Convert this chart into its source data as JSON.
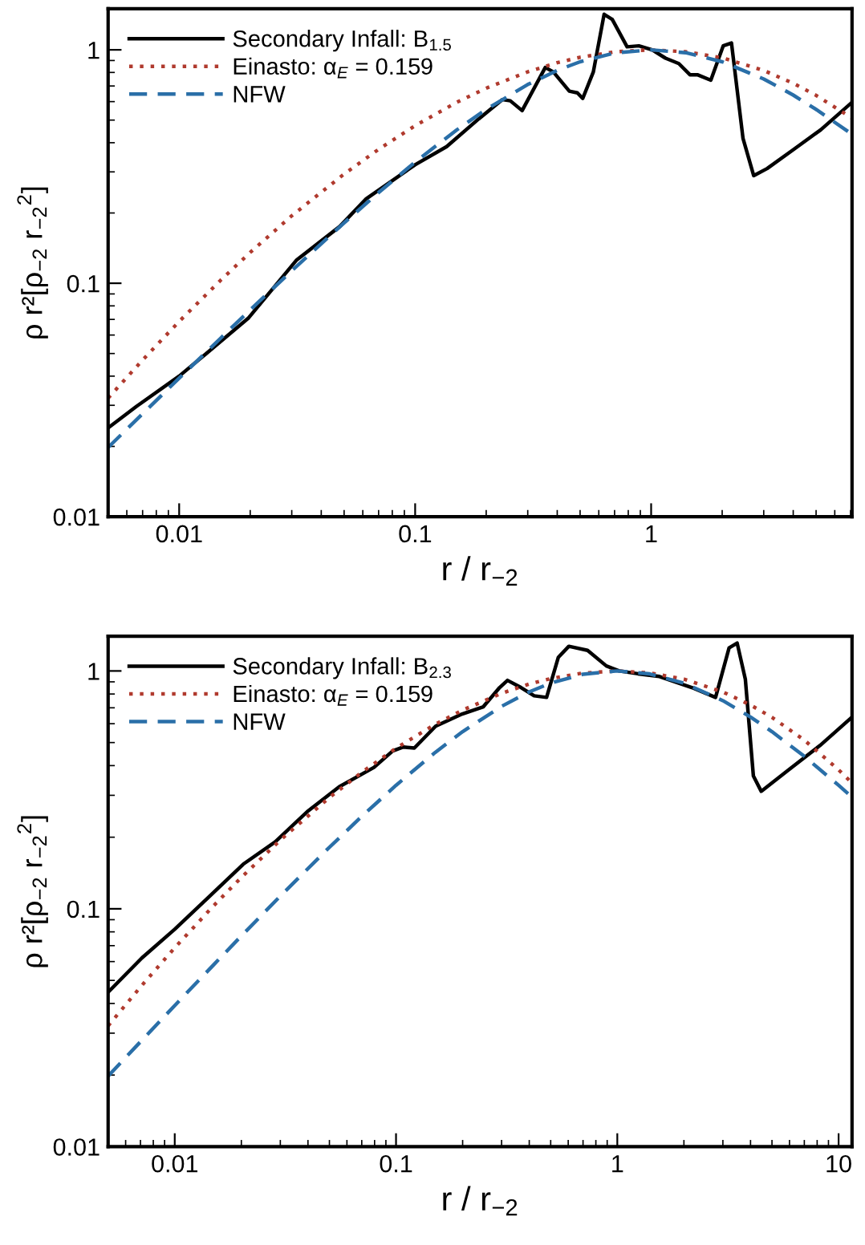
{
  "chart_data": [
    {
      "type": "line",
      "log": "xy",
      "xlabel": "r / r$_{−2}$",
      "ylabel": "ρ r²[ρ$_{−2}$ r$_{−2}$$^{2}$]",
      "xlim": [
        0.005,
        7.1
      ],
      "ylim": [
        0.01,
        1.5
      ],
      "xticks": [
        0.01,
        0.1,
        1
      ],
      "yticks": [
        0.01,
        0.1,
        1
      ],
      "legend": "top left",
      "grid": false,
      "series": [
        {
          "name": "Secondary Infall: B$_{1.5}$",
          "color": "#000000",
          "line_style": "solid",
          "x": [
            0.005,
            0.0066,
            0.01,
            0.013,
            0.0197,
            0.0315,
            0.0479,
            0.062,
            0.1,
            0.136,
            0.186,
            0.234,
            0.253,
            0.284,
            0.356,
            0.385,
            0.45,
            0.487,
            0.513,
            0.569,
            0.632,
            0.684,
            0.791,
            0.887,
            1.01,
            1.15,
            1.31,
            1.46,
            1.57,
            1.79,
            2.02,
            2.19,
            2.45,
            2.72,
            3.1,
            4.03,
            5.23,
            7.1
          ],
          "values": [
            0.024,
            0.0297,
            0.04,
            0.0499,
            0.0711,
            0.126,
            0.175,
            0.23,
            0.322,
            0.385,
            0.506,
            0.612,
            0.605,
            0.549,
            0.84,
            0.804,
            0.665,
            0.654,
            0.619,
            0.804,
            1.42,
            1.35,
            1.03,
            1.04,
            1.0,
            0.921,
            0.873,
            0.782,
            0.782,
            0.741,
            1.04,
            1.07,
            0.418,
            0.289,
            0.31,
            0.375,
            0.454,
            0.596
          ]
        },
        {
          "name": "Einasto: α$_{E}$ = 0.159",
          "color": "#b03a2e",
          "line_style": "dotted",
          "x": [
            0.005,
            0.007,
            0.01,
            0.015,
            0.02,
            0.03,
            0.05,
            0.07,
            0.1,
            0.15,
            0.2,
            0.3,
            0.4,
            0.5,
            0.7,
            1,
            1.4,
            2,
            3,
            4,
            5,
            7.1
          ],
          "values": [
            0.0322,
            0.0469,
            0.0686,
            0.1031,
            0.1355,
            0.1946,
            0.2936,
            0.3748,
            0.4733,
            0.5957,
            0.6846,
            0.805,
            0.881,
            0.929,
            0.98,
            1.0,
            0.981,
            0.924,
            0.816,
            0.719,
            0.638,
            0.51
          ]
        },
        {
          "name": "NFW",
          "color": "#2a6fa8",
          "line_style": "dashed",
          "x": [
            0.005,
            0.007,
            0.01,
            0.015,
            0.02,
            0.03,
            0.05,
            0.07,
            0.1,
            0.15,
            0.2,
            0.3,
            0.4,
            0.5,
            0.7,
            1,
            1.4,
            2,
            3,
            4,
            5,
            7.1
          ],
          "values": [
            0.0198,
            0.0276,
            0.0392,
            0.0582,
            0.0769,
            0.1131,
            0.1814,
            0.2446,
            0.3306,
            0.4537,
            0.5556,
            0.7101,
            0.8163,
            0.8889,
            0.9689,
            1.0,
            0.9722,
            0.8889,
            0.75,
            0.64,
            0.5556,
            0.435
          ]
        }
      ]
    },
    {
      "type": "line",
      "log": "xy",
      "xlabel": "r / r$_{−2}$",
      "ylabel": "ρ r²[ρ$_{−2}$ r$_{−2}$$^{2}$]",
      "xlim": [
        0.005,
        11.5
      ],
      "ylim": [
        0.01,
        1.4
      ],
      "xticks": [
        0.01,
        0.1,
        1,
        10
      ],
      "yticks": [
        0.01,
        0.1,
        1
      ],
      "legend": "top left",
      "grid": false,
      "series": [
        {
          "name": "Secondary Infall: B$_{2.3}$",
          "color": "#000000",
          "line_style": "solid",
          "x": [
            0.005,
            0.0071,
            0.01,
            0.0138,
            0.0204,
            0.0284,
            0.0397,
            0.0554,
            0.0795,
            0.0966,
            0.108,
            0.121,
            0.151,
            0.199,
            0.248,
            0.294,
            0.319,
            0.367,
            0.421,
            0.479,
            0.541,
            0.604,
            0.734,
            0.892,
            1.02,
            1.24,
            1.55,
            2.17,
            2.78,
            3.2,
            3.48,
            3.79,
            4.12,
            4.47,
            5.91,
            8.24,
            11.4
          ],
          "values": [
            0.0446,
            0.0621,
            0.082,
            0.109,
            0.154,
            0.191,
            0.256,
            0.326,
            0.393,
            0.461,
            0.479,
            0.474,
            0.586,
            0.659,
            0.707,
            0.852,
            0.913,
            0.852,
            0.786,
            0.774,
            1.14,
            1.27,
            1.22,
            1.05,
            1.0,
            0.973,
            0.948,
            0.852,
            0.774,
            1.25,
            1.31,
            0.923,
            0.362,
            0.312,
            0.382,
            0.486,
            0.635
          ]
        },
        {
          "name": "Einasto: α$_{E}$ = 0.159",
          "color": "#b03a2e",
          "line_style": "dotted",
          "x": [
            0.005,
            0.007,
            0.01,
            0.015,
            0.02,
            0.03,
            0.05,
            0.07,
            0.1,
            0.15,
            0.2,
            0.3,
            0.4,
            0.5,
            0.7,
            1,
            1.4,
            2,
            3,
            4,
            5,
            7,
            10,
            11.5
          ],
          "values": [
            0.0322,
            0.0469,
            0.0686,
            0.1031,
            0.1355,
            0.1946,
            0.2936,
            0.3748,
            0.4733,
            0.5957,
            0.6846,
            0.805,
            0.881,
            0.929,
            0.98,
            1.0,
            0.981,
            0.924,
            0.816,
            0.719,
            0.638,
            0.512,
            0.384,
            0.338
          ]
        },
        {
          "name": "NFW",
          "color": "#2a6fa8",
          "line_style": "dashed",
          "x": [
            0.005,
            0.007,
            0.01,
            0.015,
            0.02,
            0.03,
            0.05,
            0.07,
            0.1,
            0.15,
            0.2,
            0.3,
            0.4,
            0.5,
            0.7,
            1,
            1.4,
            2,
            3,
            4,
            5,
            7,
            10,
            11.5
          ],
          "values": [
            0.0198,
            0.0276,
            0.0392,
            0.0582,
            0.0769,
            0.1131,
            0.1814,
            0.2446,
            0.3306,
            0.4537,
            0.5556,
            0.7101,
            0.8163,
            0.8889,
            0.9689,
            1.0,
            0.9722,
            0.8889,
            0.75,
            0.64,
            0.5556,
            0.4375,
            0.3306,
            0.2944
          ]
        }
      ]
    }
  ]
}
